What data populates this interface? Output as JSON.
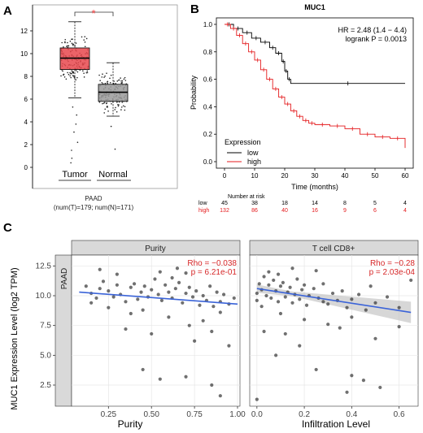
{
  "panel_labels": {
    "a": "A",
    "b": "B",
    "c": "C"
  },
  "colors": {
    "tumor": "#e8484d",
    "normal": "#9a9a9a",
    "low": "#000000",
    "high": "#e41a1c",
    "fit": "#3a63d8",
    "strip": "#d9d9d9",
    "grid": "#e6e6e6",
    "star": "#ff4444"
  },
  "chart_data": [
    {
      "type": "boxplot",
      "panel": "A",
      "yticks": [
        0,
        2,
        4,
        6,
        8,
        10,
        12
      ],
      "ylim": [
        0,
        13
      ],
      "categories": [
        "Tumor",
        "Normal"
      ],
      "boxes": [
        {
          "name": "Tumor",
          "min": 6.1,
          "q1": 8.6,
          "median": 9.6,
          "q3": 10.5,
          "max": 12.8
        },
        {
          "name": "Normal",
          "min": 4.5,
          "q1": 5.8,
          "median": 6.6,
          "q3": 7.3,
          "max": 9.2
        }
      ],
      "significance": "*",
      "footer": [
        "PAAD",
        "(num(T)=179; num(N)=171)"
      ]
    },
    {
      "type": "line",
      "panel": "B",
      "title": "MUC1",
      "xlabel": "Time (months)",
      "ylabel": "Probability",
      "xticks": [
        0,
        10,
        20,
        30,
        40,
        50,
        60
      ],
      "yticks": [
        0.0,
        0.2,
        0.4,
        0.6,
        0.8,
        1.0
      ],
      "xlim": [
        0,
        60
      ],
      "ylim": [
        0,
        1
      ],
      "annotations": [
        "HR = 2.48 (1.4 − 4.4)",
        "logrank P = 0.0013"
      ],
      "legend_title": "Expression",
      "series": [
        {
          "name": "low",
          "points": [
            [
              0,
              1.0
            ],
            [
              3,
              0.97
            ],
            [
              6,
              0.94
            ],
            [
              9,
              0.9
            ],
            [
              12,
              0.87
            ],
            [
              15,
              0.83
            ],
            [
              17,
              0.79
            ],
            [
              19,
              0.73
            ],
            [
              20,
              0.66
            ],
            [
              21,
              0.6
            ],
            [
              22,
              0.57
            ],
            [
              60,
              0.57
            ]
          ]
        },
        {
          "name": "high",
          "points": [
            [
              0,
              1.0
            ],
            [
              2,
              0.97
            ],
            [
              4,
              0.92
            ],
            [
              6,
              0.86
            ],
            [
              8,
              0.8
            ],
            [
              10,
              0.74
            ],
            [
              12,
              0.67
            ],
            [
              14,
              0.6
            ],
            [
              16,
              0.53
            ],
            [
              18,
              0.47
            ],
            [
              20,
              0.42
            ],
            [
              22,
              0.37
            ],
            [
              24,
              0.33
            ],
            [
              26,
              0.3
            ],
            [
              28,
              0.28
            ],
            [
              30,
              0.27
            ],
            [
              35,
              0.26
            ],
            [
              40,
              0.24
            ],
            [
              45,
              0.2
            ],
            [
              50,
              0.18
            ],
            [
              55,
              0.17
            ],
            [
              60,
              0.1
            ]
          ]
        }
      ],
      "risk_table": {
        "title": "Number at risk",
        "rows": [
          {
            "name": "low",
            "values": [
              "45",
              "38",
              "18",
              "14",
              "8",
              "5",
              "4"
            ]
          },
          {
            "name": "high",
            "values": [
              "132",
              "86",
              "40",
              "16",
              "9",
              "6",
              "4"
            ]
          }
        ]
      }
    },
    {
      "type": "scatter",
      "panel": "C",
      "ylabel": "MUC1 Expression Level (log2 TPM)",
      "row_strip": "PAAD",
      "yticks": [
        "2.5",
        "5.0",
        "7.5",
        "10.0",
        "12.5"
      ],
      "ylim": [
        1,
        13
      ],
      "facets": [
        {
          "strip": "Purity",
          "xlabel": "Purity",
          "xticks": [
            "0.25",
            "0.50",
            "0.75",
            "1.00"
          ],
          "xlim": [
            0.05,
            1.0
          ],
          "rho": "Rho = −0.038",
          "p": "p = 6.21e-01",
          "fit": {
            "x": [
              0.08,
              1.0
            ],
            "y": [
              10.3,
              9.3
            ]
          },
          "points": [
            [
              0.12,
              10.8
            ],
            [
              0.15,
              10.2
            ],
            [
              0.18,
              9.8
            ],
            [
              0.2,
              10.6
            ],
            [
              0.22,
              11.2
            ],
            [
              0.25,
              10.4
            ],
            [
              0.28,
              9.9
            ],
            [
              0.3,
              10.9
            ],
            [
              0.32,
              10.1
            ],
            [
              0.35,
              9.5
            ],
            [
              0.38,
              10.7
            ],
            [
              0.4,
              11.0
            ],
            [
              0.42,
              9.7
            ],
            [
              0.44,
              10.3
            ],
            [
              0.46,
              10.8
            ],
            [
              0.48,
              9.9
            ],
            [
              0.5,
              10.5
            ],
            [
              0.52,
              11.4
            ],
            [
              0.54,
              10.1
            ],
            [
              0.56,
              9.6
            ],
            [
              0.58,
              10.9
            ],
            [
              0.6,
              10.3
            ],
            [
              0.62,
              9.8
            ],
            [
              0.64,
              10.6
            ],
            [
              0.66,
              11.1
            ],
            [
              0.68,
              9.4
            ],
            [
              0.7,
              10.2
            ],
            [
              0.72,
              10.7
            ],
            [
              0.74,
              9.9
            ],
            [
              0.76,
              10.4
            ],
            [
              0.78,
              9.2
            ],
            [
              0.8,
              10.0
            ],
            [
              0.82,
              9.6
            ],
            [
              0.84,
              10.8
            ],
            [
              0.86,
              9.1
            ],
            [
              0.88,
              10.3
            ],
            [
              0.9,
              9.5
            ],
            [
              0.92,
              10.1
            ],
            [
              0.95,
              9.3
            ],
            [
              0.98,
              9.8
            ],
            [
              0.3,
              11.8
            ],
            [
              0.55,
              12.0
            ],
            [
              0.7,
              11.9
            ],
            [
              0.45,
              8.8
            ],
            [
              0.6,
              8.2
            ],
            [
              0.72,
              7.5
            ],
            [
              0.38,
              8.5
            ],
            [
              0.25,
              9.0
            ],
            [
              0.8,
              7.9
            ],
            [
              0.9,
              8.6
            ],
            [
              0.2,
              12.2
            ],
            [
              0.65,
              12.3
            ],
            [
              0.5,
              6.8
            ],
            [
              0.75,
              6.2
            ],
            [
              0.95,
              5.8
            ],
            [
              0.45,
              3.8
            ],
            [
              0.7,
              3.2
            ],
            [
              0.55,
              3.0
            ],
            [
              0.85,
              2.5
            ],
            [
              0.9,
              1.6
            ],
            [
              0.35,
              7.2
            ],
            [
              0.85,
              7.0
            ],
            [
              0.15,
              9.4
            ],
            [
              0.62,
              11.5
            ]
          ]
        },
        {
          "strip": "T cell CD8+",
          "xlabel": "Infiltration Level",
          "xticks": [
            "0.0",
            "0.2",
            "0.4",
            "0.6"
          ],
          "xlim": [
            -0.02,
            0.67
          ],
          "rho": "Rho = −0.28",
          "p": "p = 2.03e-04",
          "fit": {
            "x": [
              0.0,
              0.65
            ],
            "y": [
              10.6,
              8.6
            ]
          },
          "points": [
            [
              0.0,
              10.2
            ],
            [
              0.0,
              9.6
            ],
            [
              0.01,
              11.0
            ],
            [
              0.02,
              10.5
            ],
            [
              0.02,
              9.1
            ],
            [
              0.03,
              11.6
            ],
            [
              0.04,
              10.0
            ],
            [
              0.05,
              10.9
            ],
            [
              0.06,
              9.8
            ],
            [
              0.07,
              11.3
            ],
            [
              0.08,
              10.4
            ],
            [
              0.09,
              9.5
            ],
            [
              0.1,
              10.8
            ],
            [
              0.11,
              11.1
            ],
            [
              0.12,
              9.9
            ],
            [
              0.13,
              10.3
            ],
            [
              0.14,
              10.7
            ],
            [
              0.15,
              9.4
            ],
            [
              0.16,
              10.1
            ],
            [
              0.17,
              11.4
            ],
            [
              0.18,
              9.7
            ],
            [
              0.19,
              10.5
            ],
            [
              0.2,
              10.9
            ],
            [
              0.21,
              9.2
            ],
            [
              0.22,
              10.0
            ],
            [
              0.24,
              10.6
            ],
            [
              0.26,
              9.8
            ],
            [
              0.28,
              11.0
            ],
            [
              0.3,
              9.3
            ],
            [
              0.32,
              10.2
            ],
            [
              0.34,
              9.6
            ],
            [
              0.36,
              10.4
            ],
            [
              0.38,
              9.0
            ],
            [
              0.4,
              9.7
            ],
            [
              0.43,
              10.1
            ],
            [
              0.46,
              8.8
            ],
            [
              0.5,
              9.4
            ],
            [
              0.55,
              9.9
            ],
            [
              0.6,
              9.0
            ],
            [
              0.65,
              11.3
            ],
            [
              0.05,
              12.0
            ],
            [
              0.15,
              12.3
            ],
            [
              0.25,
              12.1
            ],
            [
              0.1,
              8.5
            ],
            [
              0.2,
              8.0
            ],
            [
              0.3,
              7.6
            ],
            [
              0.4,
              8.2
            ],
            [
              0.03,
              7.0
            ],
            [
              0.35,
              7.3
            ],
            [
              0.5,
              6.4
            ],
            [
              0.6,
              7.4
            ],
            [
              0.18,
              5.8
            ],
            [
              0.08,
              5.0
            ],
            [
              0.25,
              3.8
            ],
            [
              0.4,
              3.3
            ],
            [
              0.45,
              2.9
            ],
            [
              0.52,
              2.3
            ],
            [
              0.38,
              1.9
            ],
            [
              0.0,
              1.3
            ],
            [
              0.12,
              6.8
            ],
            [
              0.28,
              9.5
            ],
            [
              0.48,
              10.8
            ],
            [
              0.09,
              11.8
            ]
          ]
        }
      ]
    }
  ]
}
